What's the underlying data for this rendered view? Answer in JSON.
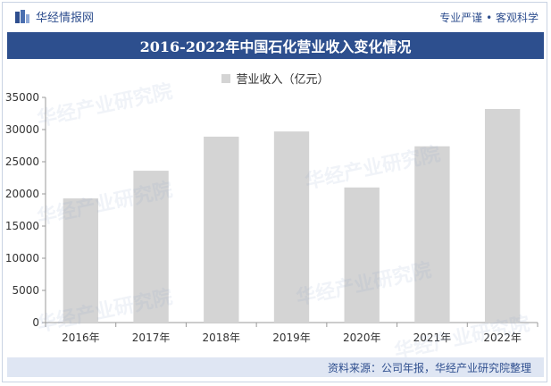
{
  "header": {
    "brand_name": "华经情报网",
    "slogan": "专业严谨 • 客观科学"
  },
  "title": "2016-2022年中国石化营业收入变化情况",
  "footer": {
    "source": "资料来源：公司年报，华经产业研究院整理"
  },
  "colors": {
    "bar": "#d4d4d4",
    "title_bg": "#2d4f8e",
    "footer_bg": "#dfe6f3",
    "brand": "#2f4f8f"
  },
  "watermark": "华经产业研究院",
  "chart_data": {
    "type": "bar",
    "categories": [
      "2016年",
      "2017年",
      "2018年",
      "2019年",
      "2020年",
      "2021年",
      "2022年"
    ],
    "series": [
      {
        "name": "营业收入（亿元）",
        "values": [
          19300,
          23600,
          28900,
          29700,
          21000,
          27400,
          33200
        ]
      }
    ],
    "ylim": [
      0,
      35000
    ],
    "yticks": [
      0,
      5000,
      10000,
      15000,
      20000,
      25000,
      30000,
      35000
    ],
    "legend_position": "top-center",
    "grid": false
  }
}
